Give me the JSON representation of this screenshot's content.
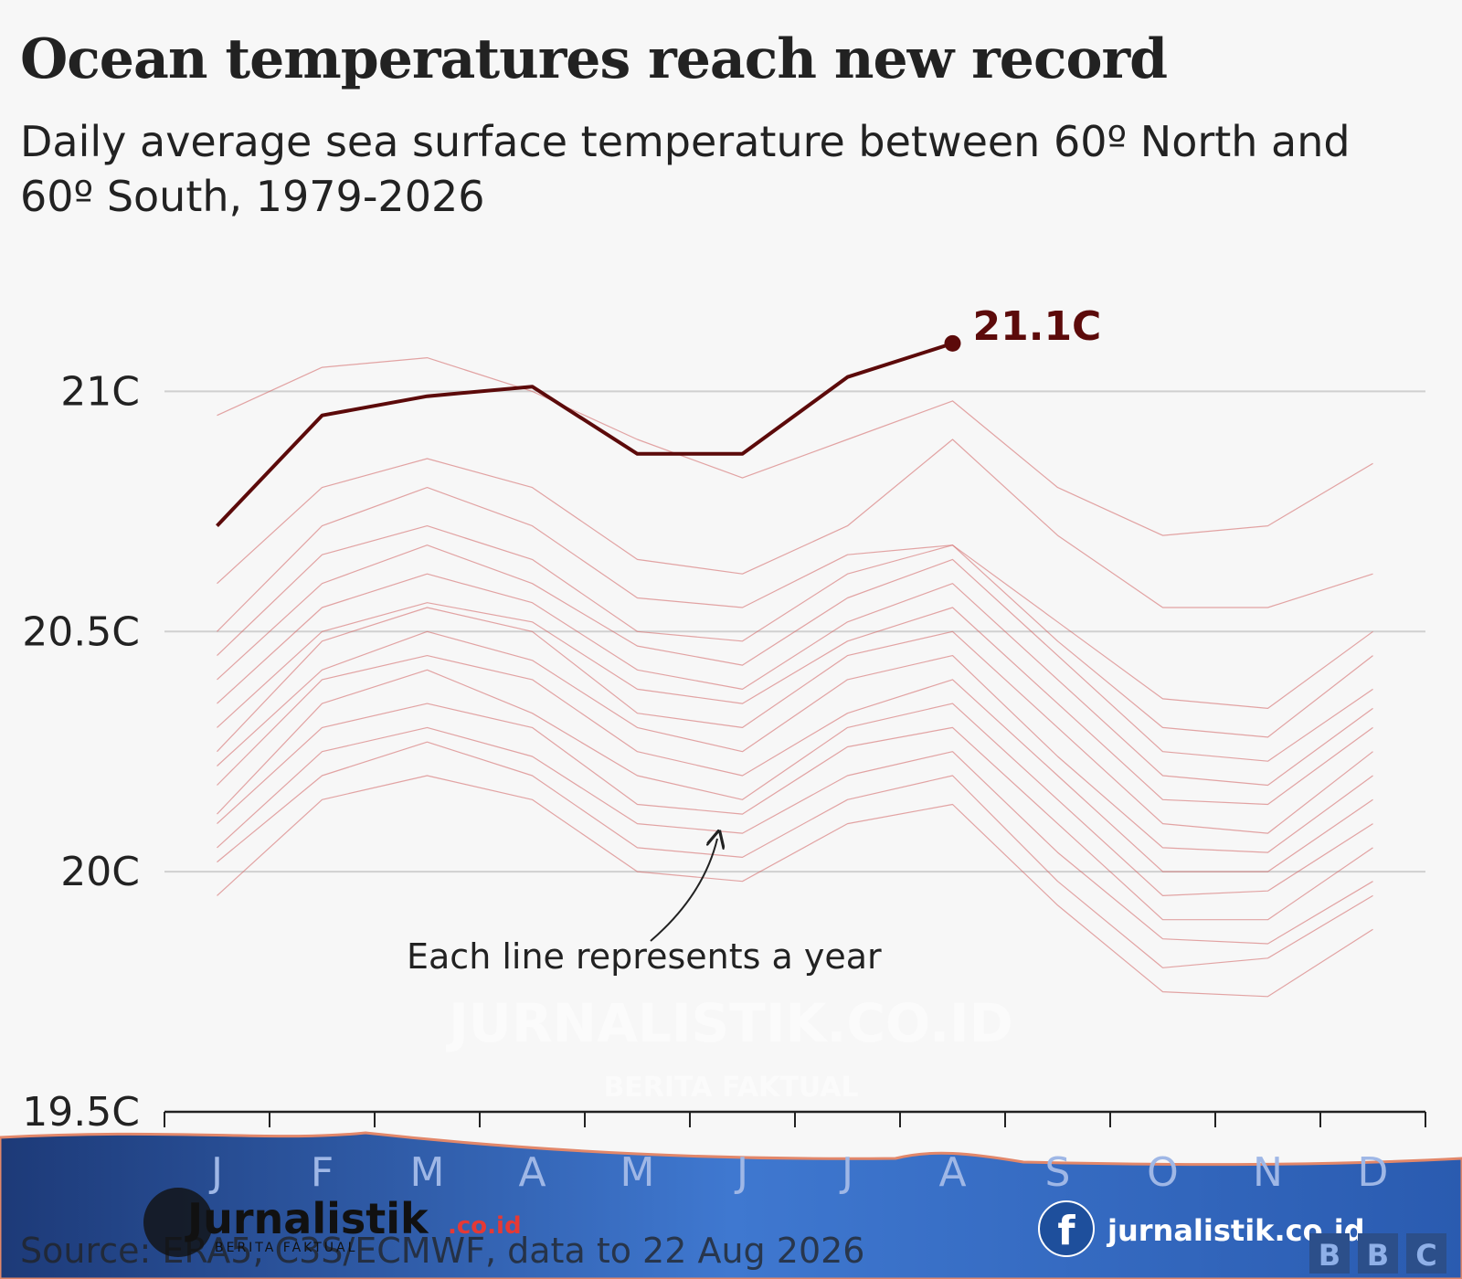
{
  "chart_data": {
    "type": "line",
    "title": "Ocean temperatures reach new record",
    "subtitle": "Daily average sea surface temperature between 60º North and 60º South, 1979-2026",
    "annotation": "Each line represents a year",
    "source": "Source: ERA5, C3S/ECMWF, data to 22 Aug 2026",
    "categories": [
      "J",
      "F",
      "M",
      "A",
      "M",
      "J",
      "J",
      "A",
      "S",
      "O",
      "N",
      "D"
    ],
    "ylim": [
      19.5,
      21.25
    ],
    "yticks": [
      {
        "value": 19.5,
        "label": "19.5C"
      },
      {
        "value": 20,
        "label": "20C"
      },
      {
        "value": 20.5,
        "label": "20.5C"
      },
      {
        "value": 21,
        "label": "21C"
      }
    ],
    "grid": true,
    "series": [
      {
        "color": "#d46a6a",
        "linewidth": 1.2,
        "values": [
          19.95,
          20.15,
          20.2,
          20.15,
          20.0,
          19.98,
          20.1,
          20.14,
          19.93,
          19.75,
          19.74,
          19.88
        ]
      },
      {
        "color": "#d46a6a",
        "linewidth": 1.2,
        "values": [
          20.02,
          20.2,
          20.27,
          20.2,
          20.05,
          20.03,
          20.15,
          20.2,
          19.98,
          19.8,
          19.82,
          19.95
        ]
      },
      {
        "color": "#d46a6a",
        "linewidth": 1.2,
        "values": [
          20.05,
          20.25,
          20.3,
          20.24,
          20.1,
          20.08,
          20.2,
          20.25,
          20.04,
          19.86,
          19.85,
          19.98
        ]
      },
      {
        "color": "#d46a6a",
        "linewidth": 1.2,
        "values": [
          20.1,
          20.3,
          20.35,
          20.3,
          20.14,
          20.12,
          20.26,
          20.3,
          20.1,
          19.9,
          19.9,
          20.05
        ]
      },
      {
        "color": "#d46a6a",
        "linewidth": 1.2,
        "values": [
          20.12,
          20.35,
          20.42,
          20.33,
          20.2,
          20.15,
          20.3,
          20.35,
          20.15,
          19.95,
          19.96,
          20.1
        ]
      },
      {
        "color": "#d46a6a",
        "linewidth": 1.2,
        "values": [
          20.18,
          20.4,
          20.45,
          20.4,
          20.25,
          20.2,
          20.33,
          20.4,
          20.2,
          20.0,
          20.0,
          20.15
        ]
      },
      {
        "color": "#d46a6a",
        "linewidth": 1.2,
        "values": [
          20.22,
          20.42,
          20.5,
          20.44,
          20.3,
          20.25,
          20.4,
          20.45,
          20.24,
          20.05,
          20.04,
          20.2
        ]
      },
      {
        "color": "#d46a6a",
        "linewidth": 1.2,
        "values": [
          20.25,
          20.48,
          20.55,
          20.5,
          20.33,
          20.3,
          20.45,
          20.5,
          20.3,
          20.1,
          20.08,
          20.25
        ]
      },
      {
        "color": "#d46a6a",
        "linewidth": 1.2,
        "values": [
          20.3,
          20.5,
          20.56,
          20.52,
          20.38,
          20.35,
          20.48,
          20.55,
          20.35,
          20.15,
          20.14,
          20.3
        ]
      },
      {
        "color": "#d46a6a",
        "linewidth": 1.2,
        "values": [
          20.35,
          20.55,
          20.62,
          20.56,
          20.42,
          20.38,
          20.52,
          20.6,
          20.4,
          20.2,
          20.18,
          20.34
        ]
      },
      {
        "color": "#d46a6a",
        "linewidth": 1.2,
        "values": [
          20.4,
          20.6,
          20.68,
          20.6,
          20.47,
          20.43,
          20.57,
          20.65,
          20.45,
          20.25,
          20.23,
          20.38
        ]
      },
      {
        "color": "#d46a6a",
        "linewidth": 1.2,
        "values": [
          20.45,
          20.66,
          20.72,
          20.65,
          20.5,
          20.48,
          20.62,
          20.68,
          20.48,
          20.3,
          20.28,
          20.45
        ]
      },
      {
        "color": "#d46a6a",
        "linewidth": 1.2,
        "values": [
          20.5,
          20.72,
          20.8,
          20.72,
          20.57,
          20.55,
          20.66,
          20.68,
          20.52,
          20.36,
          20.34,
          20.5
        ]
      },
      {
        "color": "#d46a6a",
        "linewidth": 1.2,
        "values": [
          20.6,
          20.8,
          20.86,
          20.8,
          20.65,
          20.62,
          20.72,
          20.9,
          20.7,
          20.55,
          20.55,
          20.62
        ]
      },
      {
        "color": "#d46a6a",
        "linewidth": 1.2,
        "values": [
          20.95,
          21.05,
          21.07,
          21.0,
          20.9,
          20.82,
          20.9,
          20.98,
          20.8,
          20.7,
          20.72,
          20.85
        ]
      },
      {
        "color": "#5c0a0a",
        "linewidth": 4,
        "values": [
          20.72,
          20.95,
          20.99,
          21.01,
          20.87,
          20.87,
          21.03,
          21.1,
          null,
          null,
          null,
          null
        ],
        "value_labels": [
          null,
          null,
          null,
          null,
          null,
          null,
          null,
          "21.1C",
          null,
          null,
          null,
          null
        ]
      }
    ]
  },
  "overlay": {
    "watermark": "JURNALISTIK.CO.ID",
    "watermark_tagline": "BERITA FAKTUAL",
    "logo_name": "Jurnalistik",
    "logo_domain": ".co.id",
    "logo_tagline": "BERITA FAKTUAL",
    "social": "jurnalistik.co.id",
    "social_icon": "f",
    "bbc": [
      "B",
      "B",
      "C"
    ]
  }
}
